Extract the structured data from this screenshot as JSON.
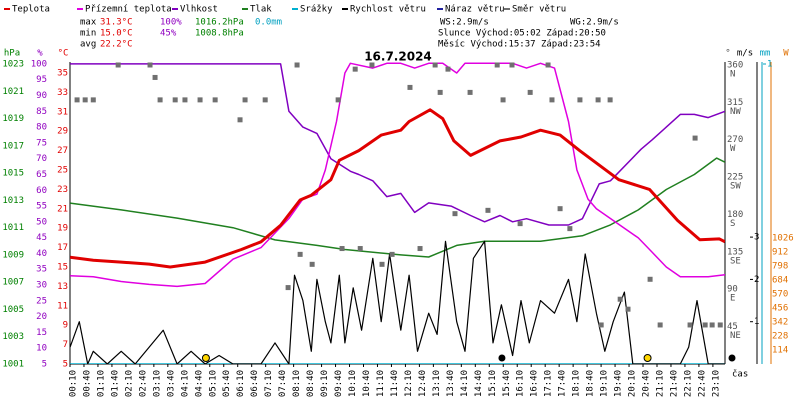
{
  "chart_data": {
    "type": "line",
    "title": "16.7.2024",
    "stats": [
      {
        "label": "max",
        "temp": "31.3°C",
        "hum": "100%",
        "press": "1016.2hPa",
        "rain": "0.0mm"
      },
      {
        "label": "min",
        "temp": "15.0°C",
        "hum": "45%",
        "press": "1008.8hPa"
      },
      {
        "label": "avg",
        "temp": "22.2°C"
      }
    ],
    "wind_speed": "WS:2.9m/s",
    "wind_gust": "WG:2.9m/s",
    "sun": "Slunce Východ:05:02 Západ:20:50",
    "moon": "Měsíc Východ:15:37 Západ:23:54",
    "x_label": "čas",
    "xlim": [
      0.167,
      23.6
    ],
    "xticks": [
      {
        "value": 0.167,
        "label": "00:10"
      },
      {
        "value": 0.667,
        "label": "00:40"
      },
      {
        "value": 1.167,
        "label": "01:10"
      },
      {
        "value": 1.667,
        "label": "01:40"
      },
      {
        "value": 2.167,
        "label": "02:10"
      },
      {
        "value": 2.667,
        "label": "02:40"
      },
      {
        "value": 3.167,
        "label": "03:10"
      },
      {
        "value": 3.667,
        "label": "03:40"
      },
      {
        "value": 4.167,
        "label": "04:10"
      },
      {
        "value": 4.667,
        "label": "04:40"
      },
      {
        "value": 5.167,
        "label": "05:10"
      },
      {
        "value": 5.667,
        "label": "05:40"
      },
      {
        "value": 6.167,
        "label": "06:10"
      },
      {
        "value": 6.667,
        "label": "06:40"
      },
      {
        "value": 7.167,
        "label": "07:10"
      },
      {
        "value": 7.667,
        "label": "07:40"
      },
      {
        "value": 8.167,
        "label": "08:10"
      },
      {
        "value": 8.667,
        "label": "08:40"
      },
      {
        "value": 9.167,
        "label": "09:10"
      },
      {
        "value": 9.667,
        "label": "09:40"
      },
      {
        "value": 10.167,
        "label": "10:10"
      },
      {
        "value": 10.667,
        "label": "10:40"
      },
      {
        "value": 11.167,
        "label": "11:10"
      },
      {
        "value": 11.667,
        "label": "11:40"
      },
      {
        "value": 12.167,
        "label": "12:10"
      },
      {
        "value": 12.667,
        "label": "12:40"
      },
      {
        "value": 13.167,
        "label": "13:10"
      },
      {
        "value": 13.667,
        "label": "13:40"
      },
      {
        "value": 14.167,
        "label": "14:10"
      },
      {
        "value": 14.667,
        "label": "14:40"
      },
      {
        "value": 15.167,
        "label": "15:10"
      },
      {
        "value": 15.667,
        "label": "15:40"
      },
      {
        "value": 16.167,
        "label": "16:10"
      },
      {
        "value": 16.667,
        "label": "16:40"
      },
      {
        "value": 17.167,
        "label": "17:10"
      },
      {
        "value": 17.667,
        "label": "17:40"
      },
      {
        "value": 18.167,
        "label": "18:10"
      },
      {
        "value": 18.667,
        "label": "18:40"
      },
      {
        "value": 19.167,
        "label": "19:10"
      },
      {
        "value": 19.667,
        "label": "19:40"
      },
      {
        "value": 20.167,
        "label": "20:10"
      },
      {
        "value": 20.667,
        "label": "20:40"
      },
      {
        "value": 21.167,
        "label": "21:10"
      },
      {
        "value": 21.667,
        "label": "21:40"
      },
      {
        "value": 22.167,
        "label": "22:10"
      },
      {
        "value": 22.667,
        "label": "22:40"
      },
      {
        "value": 23.167,
        "label": "23:10"
      }
    ],
    "axes": {
      "press": {
        "unit": "hPa",
        "color": "#008000",
        "lim": [
          1001,
          1023.15
        ],
        "ticks": [
          1023,
          1021,
          1019,
          1017,
          1015,
          1013,
          1011,
          1009,
          1007,
          1005,
          1003,
          1001
        ]
      },
      "hum": {
        "unit": "%",
        "color": "#9000c0",
        "lim": [
          5,
          100.6
        ],
        "ticks": [
          100,
          95,
          90,
          85,
          80,
          75,
          70,
          65,
          60,
          55,
          50,
          45,
          40,
          35,
          30,
          25,
          20,
          15,
          10,
          5
        ]
      },
      "temp": {
        "unit": "°C",
        "color": "#e00000",
        "lim": [
          5,
          36.13
        ],
        "ticks": [
          35,
          33,
          31,
          29,
          27,
          25,
          23,
          21,
          19,
          17,
          15,
          13,
          11,
          9,
          7,
          5
        ]
      },
      "dir": {
        "unit": "°",
        "color": "#505050",
        "lim": [
          0,
          363.6
        ],
        "ticks": [
          360,
          315,
          270,
          225,
          180,
          135,
          90,
          45
        ],
        "compass": [
          "N",
          "NW",
          "W",
          "SW",
          "S",
          "SE",
          "E",
          "NE"
        ]
      },
      "wind": {
        "unit": "m/s",
        "color": "#000000",
        "lim": [
          0,
          7.14
        ],
        "ticks": [
          3,
          2,
          1
        ]
      },
      "rain": {
        "unit": "mm",
        "color": "#00a0c0",
        "lim": [
          0,
          1.0067
        ],
        "ticks": [
          1
        ]
      },
      "solar": {
        "unit": "W",
        "color": "#e07000",
        "lim": [
          0,
          2458
        ],
        "ticks": [
          1026,
          912,
          798,
          684,
          570,
          456,
          342,
          228,
          114
        ]
      }
    },
    "series": [
      {
        "name": "Teplota",
        "color": "#e00000",
        "axis": "temp",
        "x": [
          0.17,
          1,
          2,
          3,
          3.75,
          5,
          6.3,
          7,
          7.7,
          8.4,
          8.8,
          9.5,
          9.8,
          10.5,
          11.3,
          12,
          12.3,
          13.05,
          13.5,
          13.9,
          14.5,
          15.55,
          16.3,
          17,
          17.7,
          18.4,
          19.8,
          20.9,
          21.9,
          22.7,
          23.4,
          23.6
        ],
        "values": [
          16,
          15.7,
          15.5,
          15.3,
          15.0,
          15.5,
          16.8,
          17.6,
          19.3,
          21.9,
          22.4,
          24,
          26,
          27,
          28.6,
          29.1,
          30,
          31.2,
          30.3,
          28,
          26.5,
          28,
          28.4,
          29.1,
          28.6,
          27,
          24,
          23,
          19.8,
          17.8,
          17.9,
          17.6
        ]
      },
      {
        "name": "Přízemní teplota",
        "color": "#e000e0",
        "axis": "temp",
        "x": [
          0.17,
          1,
          2,
          3,
          4,
          5,
          6,
          7,
          7.5,
          8,
          8.5,
          9,
          9.3,
          9.7,
          10,
          10.2,
          11,
          11.5,
          12,
          12.5,
          13,
          13.5,
          14,
          14.3,
          15,
          16,
          16.5,
          17,
          17.5,
          18,
          18.3,
          18.7,
          19,
          19.5,
          20,
          20.5,
          21,
          21.5,
          22,
          23,
          23.6
        ],
        "values": [
          14.1,
          14,
          13.5,
          13.2,
          13.0,
          13.3,
          15.8,
          17,
          18.5,
          20,
          22,
          22.5,
          25,
          30,
          35,
          36,
          35.5,
          36,
          36,
          35.5,
          36,
          36,
          35,
          36,
          36,
          36,
          35.5,
          36,
          35.5,
          30,
          25,
          22,
          21,
          20,
          19,
          18,
          16.5,
          15,
          14,
          14,
          14.2
        ]
      },
      {
        "name": "Vlhkost",
        "color": "#8000c0",
        "axis": "hum",
        "x": [
          0.17,
          2,
          4,
          6,
          7.7,
          8,
          8.5,
          9,
          9.5,
          10.2,
          10.5,
          11,
          11.5,
          12,
          12.5,
          13,
          13.8,
          14.5,
          15,
          15.55,
          16,
          16.5,
          17.3,
          18,
          18.5,
          19.1,
          19.5,
          20.6,
          21,
          21.5,
          22,
          22.5,
          23,
          23.6
        ],
        "values": [
          100,
          100,
          100,
          100,
          100,
          85,
          80,
          78,
          70,
          66,
          65,
          63,
          58,
          59,
          53,
          56,
          55,
          52,
          50,
          52,
          50,
          51,
          49,
          49,
          51,
          62,
          63,
          73,
          76,
          80,
          84,
          84,
          83,
          85
        ]
      },
      {
        "name": "Tlak",
        "color": "#208020",
        "axis": "press",
        "x": [
          0.17,
          2,
          4,
          6,
          7.5,
          9,
          10,
          12,
          13,
          14,
          15,
          17,
          18.5,
          19.5,
          20.5,
          21.5,
          22.5,
          23.3,
          23.6
        ],
        "values": [
          1012.8,
          1012.3,
          1011.7,
          1011,
          1010.1,
          1009.7,
          1009.4,
          1009,
          1008.85,
          1009.7,
          1010,
          1010,
          1010.4,
          1011.2,
          1012.3,
          1013.8,
          1014.9,
          1016.1,
          1015.8
        ]
      },
      {
        "name": "Srážky",
        "color": "#00b0d0",
        "axis": "rain",
        "x": [
          0.17,
          23.6
        ],
        "values": [
          0,
          0
        ]
      },
      {
        "name": "Rychlost větru",
        "color": "#000000",
        "axis": "wind",
        "x": [
          0.17,
          0.5,
          0.8,
          1,
          1.5,
          2,
          2.5,
          3,
          3.5,
          4,
          4.5,
          5,
          5.5,
          6,
          6.5,
          7,
          7.5,
          8,
          8.2,
          8.5,
          8.8,
          9,
          9.3,
          9.5,
          9.8,
          10,
          10.3,
          10.6,
          11,
          11.3,
          11.6,
          12,
          12.3,
          12.6,
          13,
          13.3,
          13.6,
          14,
          14.3,
          14.6,
          15,
          15.3,
          15.6,
          16,
          16.3,
          16.6,
          17,
          17.5,
          18,
          18.3,
          18.6,
          19,
          19.3,
          19.6,
          20,
          20.3,
          21,
          21.5,
          22,
          22.3,
          22.6,
          23,
          23.6
        ],
        "values": [
          0.4,
          1,
          0,
          0.3,
          0,
          0.3,
          0,
          0.4,
          0.8,
          0,
          0.3,
          0,
          0.2,
          0,
          0,
          0,
          0.5,
          0,
          2.1,
          1.5,
          0.3,
          2,
          1,
          0.5,
          2.1,
          0.5,
          1.8,
          0.8,
          2.5,
          1,
          2.6,
          0.8,
          2.1,
          0.3,
          1.2,
          0.7,
          2.9,
          1,
          0.3,
          2.5,
          2.9,
          0.5,
          1.4,
          0.2,
          1.5,
          0.5,
          1.5,
          1.2,
          2,
          1,
          2.6,
          1.2,
          0.3,
          1,
          1.7,
          0,
          0,
          0,
          0,
          0.4,
          1.5,
          0,
          0
        ]
      },
      {
        "name": "Náraz větru",
        "color": "#2020a0",
        "axis": "wind"
      },
      {
        "name": "Směr větru",
        "color": "#707070",
        "axis": "dir",
        "mark": "square",
        "x": [
          0.42,
          0.71,
          1.0,
          1.89,
          3.03,
          3.21,
          3.39,
          3.93,
          4.28,
          4.82,
          5.36,
          6.25,
          6.43,
          7.15,
          7.97,
          8.29,
          8.4,
          8.83,
          9.76,
          9.9,
          10.37,
          10.55,
          10.97,
          11.33,
          11.69,
          12.33,
          12.69,
          13.23,
          13.41,
          13.69,
          13.94,
          14.48,
          15.12,
          15.45,
          15.66,
          15.98,
          16.27,
          16.63,
          17.27,
          17.41,
          17.7,
          18.05,
          18.41,
          19.06,
          19.17,
          19.49,
          19.85,
          20.13,
          20.92,
          21.28,
          22.35,
          22.53,
          22.89,
          23.14,
          23.43
        ],
        "values": [
          318,
          318,
          318,
          360,
          360,
          345,
          318,
          318,
          318,
          318,
          318,
          294,
          318,
          318,
          92,
          360,
          132,
          120,
          318,
          139,
          355,
          139,
          360,
          120,
          132,
          333,
          139,
          360,
          327,
          355,
          181,
          327,
          185,
          360,
          318,
          360,
          169,
          327,
          360,
          318,
          187,
          163,
          318,
          318,
          47,
          318,
          78,
          66,
          102,
          47,
          47,
          272,
          47,
          47,
          47
        ]
      }
    ],
    "sun_markers": [
      5.03,
      20.83
    ],
    "moon_markers": [
      15.62,
      23.9
    ]
  }
}
